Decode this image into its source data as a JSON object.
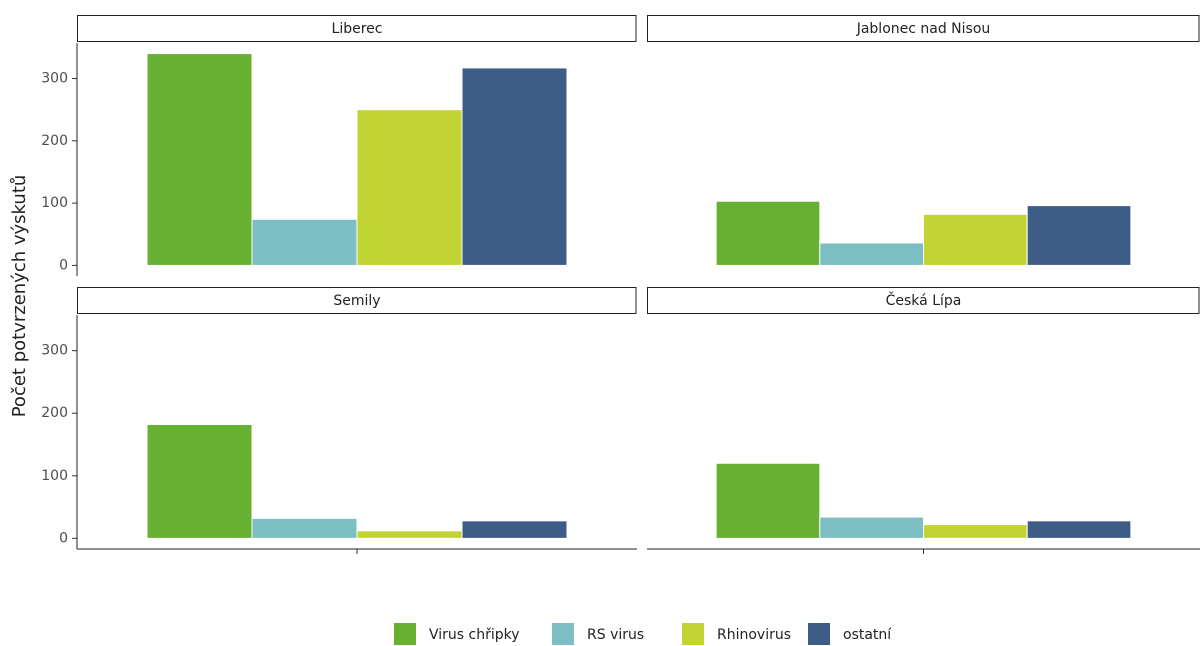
{
  "chart_data": [
    {
      "type": "bar",
      "title": "Liberec",
      "ylabel": "Počet potvrzených výskutů",
      "categories": [
        null
      ],
      "series": [
        {
          "name": "Virus chřipky",
          "color": "#66b032",
          "values": [
            340
          ]
        },
        {
          "name": "RS virus",
          "color": "#7dbdc4",
          "values": [
            74
          ]
        },
        {
          "name": "Rhinovirus",
          "color": "#c2d334",
          "values": [
            250
          ]
        },
        {
          "name": "ostatní",
          "color": "#3d5c86",
          "values": [
            317
          ]
        }
      ],
      "ylim": [
        -17,
        357
      ],
      "yticks": [
        0,
        100,
        200,
        300
      ]
    },
    {
      "type": "bar",
      "title": "Jablonec nad Nisou",
      "categories": [
        null
      ],
      "series": [
        {
          "name": "Virus chřipky",
          "color": "#66b032",
          "values": [
            103
          ]
        },
        {
          "name": "RS virus",
          "color": "#7dbdc4",
          "values": [
            36
          ]
        },
        {
          "name": "Rhinovirus",
          "color": "#c2d334",
          "values": [
            82
          ]
        },
        {
          "name": "ostatní",
          "color": "#3d5c86",
          "values": [
            96
          ]
        }
      ],
      "ylim": [
        -17,
        357
      ],
      "yticks": [
        0,
        100,
        200,
        300
      ]
    },
    {
      "type": "bar",
      "title": "Semily",
      "categories": [
        null
      ],
      "series": [
        {
          "name": "Virus chřipky",
          "color": "#66b032",
          "values": [
            182
          ]
        },
        {
          "name": "RS virus",
          "color": "#7dbdc4",
          "values": [
            32
          ]
        },
        {
          "name": "Rhinovirus",
          "color": "#c2d334",
          "values": [
            12
          ]
        },
        {
          "name": "ostatní",
          "color": "#3d5c86",
          "values": [
            28
          ]
        }
      ],
      "ylim": [
        -17,
        357
      ],
      "yticks": [
        0,
        100,
        200,
        300
      ]
    },
    {
      "type": "bar",
      "title": "Česká Lípa",
      "categories": [
        null
      ],
      "series": [
        {
          "name": "Virus chřipky",
          "color": "#66b032",
          "values": [
            120
          ]
        },
        {
          "name": "RS virus",
          "color": "#7dbdc4",
          "values": [
            34
          ]
        },
        {
          "name": "Rhinovirus",
          "color": "#c2d334",
          "values": [
            22
          ]
        },
        {
          "name": "ostatní",
          "color": "#3d5c86",
          "values": [
            28
          ]
        }
      ],
      "ylim": [
        -17,
        357
      ],
      "yticks": [
        0,
        100,
        200,
        300
      ]
    }
  ]
}
